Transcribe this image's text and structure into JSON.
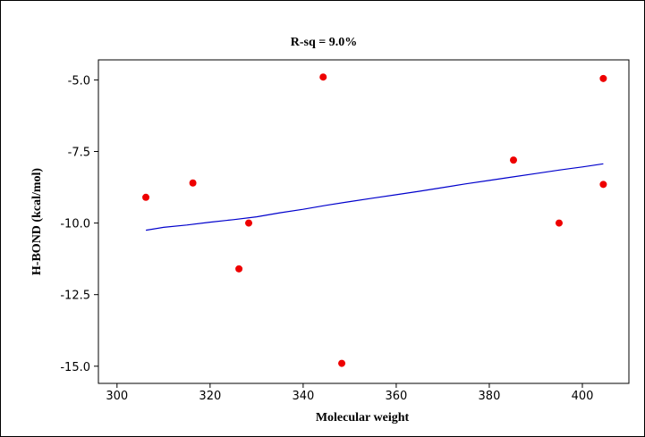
{
  "chart_data": {
    "type": "scatter",
    "title": "R-sq = 9.0%",
    "xlabel": "Molecular weight",
    "ylabel": "H-BOND (kcal/mol)",
    "xlim": [
      296,
      410
    ],
    "ylim": [
      -15.6,
      -4.3
    ],
    "x_ticks": [
      300,
      320,
      340,
      360,
      380,
      400
    ],
    "x_tick_labels": [
      "300",
      "320",
      "340",
      "360",
      "380",
      "400"
    ],
    "y_ticks": [
      -5.0,
      -7.5,
      -10.0,
      -12.5,
      -15.0
    ],
    "y_tick_labels": [
      "-5.0",
      "-7.5",
      "-10.0",
      "-12.5",
      "-15.0"
    ],
    "grid": false,
    "legend": "none",
    "series": [
      {
        "kind": "points",
        "color": "#ee0000",
        "points": [
          {
            "x": 306.2,
            "y": -9.1
          },
          {
            "x": 316.3,
            "y": -8.6
          },
          {
            "x": 326.2,
            "y": -11.6
          },
          {
            "x": 328.3,
            "y": -10.0
          },
          {
            "x": 344.3,
            "y": -4.9
          },
          {
            "x": 348.3,
            "y": -14.9
          },
          {
            "x": 385.2,
            "y": -7.8
          },
          {
            "x": 395.0,
            "y": -10.0
          },
          {
            "x": 404.5,
            "y": -4.95
          },
          {
            "x": 404.5,
            "y": -8.65
          }
        ]
      },
      {
        "kind": "fit",
        "color": "#0000cc",
        "points": [
          {
            "x": 306.2,
            "y": -10.25
          },
          {
            "x": 310,
            "y": -10.15
          },
          {
            "x": 315,
            "y": -10.07
          },
          {
            "x": 320,
            "y": -9.97
          },
          {
            "x": 325,
            "y": -9.88
          },
          {
            "x": 330,
            "y": -9.78
          },
          {
            "x": 335,
            "y": -9.64
          },
          {
            "x": 340,
            "y": -9.52
          },
          {
            "x": 345,
            "y": -9.38
          },
          {
            "x": 350,
            "y": -9.25
          },
          {
            "x": 355,
            "y": -9.13
          },
          {
            "x": 360,
            "y": -9.01
          },
          {
            "x": 365,
            "y": -8.89
          },
          {
            "x": 370,
            "y": -8.76
          },
          {
            "x": 375,
            "y": -8.63
          },
          {
            "x": 380,
            "y": -8.51
          },
          {
            "x": 385,
            "y": -8.39
          },
          {
            "x": 390,
            "y": -8.27
          },
          {
            "x": 395,
            "y": -8.15
          },
          {
            "x": 400,
            "y": -8.04
          },
          {
            "x": 404.5,
            "y": -7.93
          }
        ]
      }
    ]
  }
}
